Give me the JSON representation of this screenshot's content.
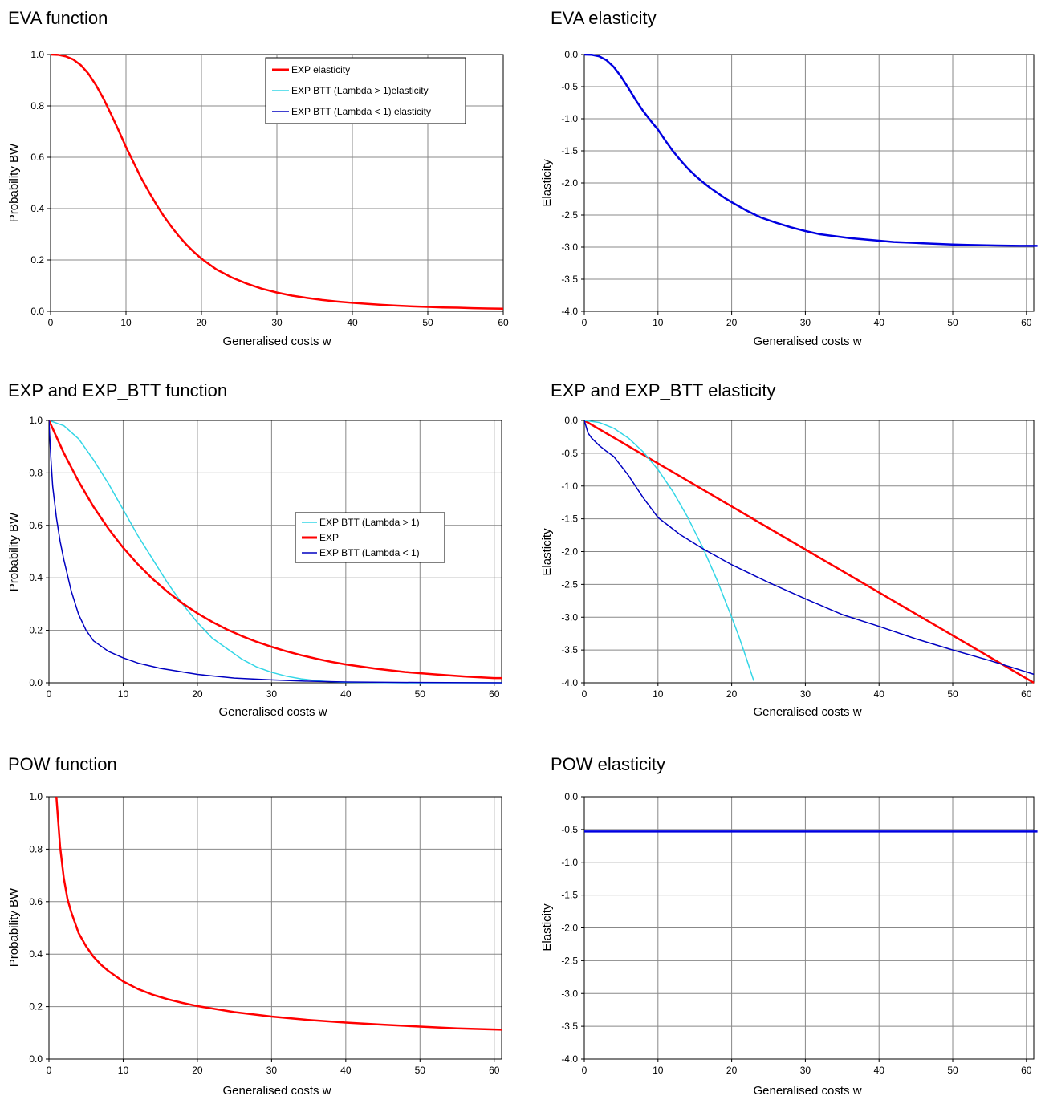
{
  "chart_data": [
    {
      "type": "line",
      "title": "EVA function",
      "xlabel": "Generalised costs w",
      "ylabel": "Probability BW",
      "xlim": [
        0,
        60
      ],
      "ylim": [
        0,
        1
      ],
      "xticks": [
        "0",
        "10",
        "20",
        "30",
        "40",
        "50",
        "60"
      ],
      "yticks": [
        "0.0",
        "0.2",
        "0.4",
        "0.6",
        "0.8",
        "1.0"
      ],
      "grid": true,
      "series": [
        {
          "color": "#ff0000",
          "x": [
            0,
            1,
            2,
            3,
            4,
            5,
            6,
            7,
            8,
            9,
            10,
            11,
            12,
            13,
            14,
            15,
            16,
            17,
            18,
            19,
            20,
            22,
            24,
            26,
            28,
            30,
            32,
            34,
            36,
            38,
            40,
            42,
            44,
            46,
            48,
            50,
            52,
            54,
            56,
            58,
            60
          ],
          "y": [
            1.0,
            0.999,
            0.993,
            0.981,
            0.959,
            0.926,
            0.882,
            0.829,
            0.769,
            0.706,
            0.64,
            0.58,
            0.52,
            0.467,
            0.417,
            0.371,
            0.33,
            0.293,
            0.26,
            0.231,
            0.205,
            0.163,
            0.132,
            0.108,
            0.088,
            0.073,
            0.061,
            0.052,
            0.044,
            0.038,
            0.033,
            0.029,
            0.025,
            0.022,
            0.019,
            0.017,
            0.015,
            0.014,
            0.012,
            0.011,
            0.01
          ]
        }
      ]
    },
    {
      "type": "line",
      "title": "EVA elasticity",
      "xlabel": "Generalised costs w",
      "ylabel": "Elasticity",
      "xlim": [
        0,
        61
      ],
      "ylim": [
        -4,
        0
      ],
      "xticks": [
        "0",
        "10",
        "20",
        "30",
        "40",
        "50",
        "60"
      ],
      "yticks": [
        "-4.0",
        "-3.5",
        "-3.0",
        "-2.5",
        "-2.0",
        "-1.5",
        "-1.0",
        "-0.5",
        "0.0"
      ],
      "grid": true,
      "series": [
        {
          "color": "#0000e0",
          "x": [
            0,
            1,
            2,
            3,
            4,
            5,
            6,
            7,
            8,
            9,
            10,
            11,
            12,
            13,
            14,
            15,
            16,
            17,
            18,
            19,
            20,
            22,
            24,
            26,
            28,
            30,
            32,
            34,
            36,
            38,
            40,
            42,
            44,
            46,
            48,
            50,
            52,
            54,
            56,
            58,
            60,
            61.5
          ],
          "y": [
            0,
            -0.003,
            -0.027,
            -0.087,
            -0.194,
            -0.346,
            -0.526,
            -0.713,
            -0.882,
            -1.03,
            -1.17,
            -1.34,
            -1.5,
            -1.64,
            -1.77,
            -1.88,
            -1.98,
            -2.07,
            -2.15,
            -2.23,
            -2.3,
            -2.43,
            -2.54,
            -2.62,
            -2.69,
            -2.75,
            -2.8,
            -2.83,
            -2.86,
            -2.88,
            -2.9,
            -2.92,
            -2.93,
            -2.94,
            -2.95,
            -2.96,
            -2.965,
            -2.97,
            -2.975,
            -2.978,
            -2.98,
            -2.98
          ]
        }
      ]
    },
    {
      "type": "line",
      "title": "EXP and EXP_BTT function",
      "xlabel": "Generalised costs w",
      "ylabel": "Probability BW",
      "xlim": [
        0,
        61
      ],
      "ylim": [
        0,
        1
      ],
      "xticks": [
        "0",
        "10",
        "20",
        "30",
        "40",
        "50",
        "60"
      ],
      "yticks": [
        "0.0",
        "0.2",
        "0.4",
        "0.6",
        "0.8",
        "1.0"
      ],
      "grid": true,
      "legend": "right",
      "series": [
        {
          "name": "EXP BTT (Lambda > 1)",
          "color": "#33d6e6",
          "x": [
            0,
            2,
            4,
            6,
            8,
            10,
            12,
            14,
            16,
            18,
            20,
            22,
            24,
            26,
            28,
            30,
            32,
            34,
            36,
            38,
            40,
            44,
            48,
            52,
            56,
            60,
            61
          ],
          "y": [
            1.0,
            0.98,
            0.93,
            0.85,
            0.76,
            0.66,
            0.56,
            0.47,
            0.38,
            0.3,
            0.23,
            0.17,
            0.13,
            0.09,
            0.06,
            0.04,
            0.025,
            0.015,
            0.008,
            0.004,
            0.002,
            0.001,
            0.0,
            0.0,
            0.0,
            0.0,
            0.0
          ]
        },
        {
          "name": "EXP",
          "color": "#ff0000",
          "x": [
            0,
            2,
            4,
            6,
            8,
            10,
            12,
            14,
            16,
            18,
            20,
            22,
            24,
            26,
            28,
            30,
            32,
            34,
            36,
            38,
            40,
            44,
            48,
            52,
            56,
            60,
            61
          ],
          "y": [
            1.0,
            0.876,
            0.767,
            0.671,
            0.588,
            0.515,
            0.451,
            0.395,
            0.346,
            0.303,
            0.265,
            0.232,
            0.203,
            0.178,
            0.156,
            0.137,
            0.12,
            0.105,
            0.092,
            0.08,
            0.07,
            0.054,
            0.041,
            0.032,
            0.024,
            0.018,
            0.018
          ]
        },
        {
          "name": "EXP BTT (Lambda < 1)",
          "color": "#0000c0",
          "x": [
            0,
            0.25,
            0.5,
            1,
            1.5,
            2,
            3,
            4,
            5,
            6,
            8,
            10,
            12,
            15,
            20,
            25,
            30,
            35,
            40,
            50,
            61
          ],
          "y": [
            1.0,
            0.86,
            0.75,
            0.63,
            0.54,
            0.47,
            0.35,
            0.26,
            0.2,
            0.16,
            0.12,
            0.095,
            0.075,
            0.055,
            0.032,
            0.018,
            0.011,
            0.006,
            0.003,
            0.001,
            0.0
          ]
        }
      ]
    },
    {
      "type": "line",
      "title": "EXP and EXP_BTT elasticity",
      "xlabel": "Generalised costs w",
      "ylabel": "Elasticity",
      "xlim": [
        0,
        61
      ],
      "ylim": [
        -4,
        0
      ],
      "xticks": [
        "0",
        "10",
        "20",
        "30",
        "40",
        "50",
        "60"
      ],
      "yticks": [
        "-4.0",
        "-3.5",
        "-3.0",
        "-2.5",
        "-2.0",
        "-1.5",
        "-1.0",
        "-0.5",
        "0.0"
      ],
      "grid": true,
      "legend": "top-right",
      "series": [
        {
          "name": "EXP elasticity",
          "color": "#ff0000",
          "x": [
            0,
            61
          ],
          "y": [
            0,
            -4.0
          ]
        },
        {
          "name": "EXP BTT (Lambda > 1)elasticity",
          "color": "#33d6e6",
          "x": [
            0,
            2,
            4,
            6,
            8,
            10,
            12,
            14,
            16,
            18,
            20,
            21,
            22,
            23
          ],
          "y": [
            0,
            -0.03,
            -0.12,
            -0.27,
            -0.48,
            -0.75,
            -1.08,
            -1.47,
            -1.92,
            -2.43,
            -3.0,
            -3.3,
            -3.63,
            -3.97
          ]
        },
        {
          "name": "EXP BTT (Lambda < 1) elasticity",
          "color": "#0000c0",
          "x": [
            0,
            0.5,
            1,
            2,
            3,
            4,
            6,
            8,
            10,
            13,
            16,
            20,
            25,
            30,
            35,
            40,
            45,
            50,
            55,
            61
          ],
          "y": [
            0,
            -0.19,
            -0.27,
            -0.38,
            -0.47,
            -0.55,
            -0.84,
            -1.18,
            -1.48,
            -1.74,
            -1.95,
            -2.2,
            -2.47,
            -2.72,
            -2.96,
            -3.14,
            -3.33,
            -3.5,
            -3.66,
            -3.87
          ]
        }
      ]
    },
    {
      "type": "line",
      "title": "POW function",
      "xlabel": "Generalised costs w",
      "ylabel": "Probability BW",
      "xlim": [
        0,
        61
      ],
      "ylim": [
        0,
        1
      ],
      "xticks": [
        "0",
        "10",
        "20",
        "30",
        "40",
        "50",
        "60"
      ],
      "yticks": [
        "0.0",
        "0.2",
        "0.4",
        "0.6",
        "0.8",
        "1.0"
      ],
      "grid": true,
      "series": [
        {
          "color": "#ff0000",
          "x": [
            1,
            1.5,
            2,
            2.5,
            3,
            4,
            5,
            6,
            7,
            8,
            10,
            12,
            14,
            16,
            18,
            20,
            25,
            30,
            35,
            40,
            45,
            50,
            55,
            61
          ],
          "y": [
            1.0,
            0.81,
            0.69,
            0.61,
            0.56,
            0.48,
            0.43,
            0.39,
            0.36,
            0.336,
            0.296,
            0.267,
            0.245,
            0.228,
            0.214,
            0.202,
            0.179,
            0.162,
            0.149,
            0.139,
            0.131,
            0.124,
            0.117,
            0.112
          ]
        }
      ]
    },
    {
      "type": "line",
      "title": "POW elasticity",
      "xlabel": "Generalised costs  w",
      "ylabel": "Elasticity",
      "xlim": [
        0,
        61
      ],
      "ylim": [
        -4,
        0
      ],
      "xticks": [
        "0",
        "10",
        "20",
        "30",
        "40",
        "50",
        "60"
      ],
      "yticks": [
        "-4.0",
        "-3.5",
        "-3.0",
        "-2.5",
        "-2.0",
        "-1.5",
        "-1.0",
        "-0.5",
        "0.0"
      ],
      "grid": true,
      "series": [
        {
          "color": "#0000e0",
          "x": [
            0,
            61.5
          ],
          "y": [
            -0.53,
            -0.53
          ]
        }
      ]
    }
  ]
}
